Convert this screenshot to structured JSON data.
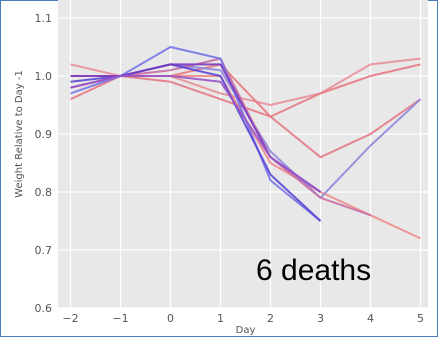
{
  "chart_data": {
    "type": "line",
    "title": "",
    "xlabel": "Day",
    "ylabel": "Weight Relative to Day -1",
    "xlim": [
      -2.25,
      5.15
    ],
    "ylim": [
      0.6,
      1.2
    ],
    "x_ticks": [
      -2,
      -1,
      0,
      1,
      2,
      3,
      4,
      5
    ],
    "y_ticks": [
      0.6,
      0.7,
      0.8,
      0.9,
      1.0,
      1.1
    ],
    "y_tick_labels": [
      "0.6",
      "0.7",
      "0.8",
      "0.9",
      "1.0",
      "1.1"
    ],
    "grid": true,
    "background": "#e8e8e8",
    "grid_color": "#ffffff",
    "annotation": "6 deaths",
    "series": [
      {
        "color": "#e8909a",
        "x": [
          -2,
          -1,
          0,
          1,
          2,
          3,
          4,
          5
        ],
        "y": [
          1.02,
          1.0,
          1.0,
          0.97,
          0.95,
          0.97,
          1.02,
          1.03
        ]
      },
      {
        "color": "#e87a82",
        "x": [
          -2,
          -1,
          0,
          1,
          2,
          3,
          4,
          5
        ],
        "y": [
          0.96,
          1.0,
          1.0,
          1.02,
          0.93,
          0.97,
          1.0,
          1.02
        ]
      },
      {
        "color": "#e37a86",
        "x": [
          -2,
          -1,
          0,
          1,
          2,
          3,
          4,
          5
        ],
        "y": [
          1.0,
          1.0,
          0.99,
          0.96,
          0.93,
          0.86,
          0.9,
          0.96
        ]
      },
      {
        "color": "#ef8a8c",
        "x": [
          -2,
          -1,
          0,
          1,
          2,
          3,
          4,
          5
        ],
        "y": [
          1.0,
          1.0,
          1.0,
          1.0,
          0.85,
          0.8,
          0.76,
          0.72
        ]
      },
      {
        "color": "#8e88d9",
        "x": [
          -2,
          -1,
          0,
          1,
          2,
          3,
          4,
          5
        ],
        "y": [
          0.98,
          1.0,
          1.02,
          1.01,
          0.87,
          0.79,
          0.88,
          0.96
        ]
      },
      {
        "color": "#c96da5",
        "x": [
          -2,
          -1,
          0,
          1,
          2,
          3,
          4
        ],
        "y": [
          0.98,
          1.0,
          1.01,
          1.03,
          0.86,
          0.79,
          0.76
        ]
      },
      {
        "color": "#7777e6",
        "x": [
          -2,
          -1,
          0,
          1,
          2,
          3
        ],
        "y": [
          0.97,
          1.0,
          1.05,
          1.03,
          0.82,
          0.75
        ]
      },
      {
        "color": "#5a46d6",
        "x": [
          -2,
          -1,
          0,
          1,
          2,
          3
        ],
        "y": [
          0.99,
          1.0,
          1.02,
          1.0,
          0.83,
          0.75
        ]
      },
      {
        "color": "#7a3ac0",
        "x": [
          -2,
          -1,
          0,
          1,
          2,
          3
        ],
        "y": [
          1.0,
          1.0,
          1.02,
          1.02,
          0.86,
          0.8
        ]
      },
      {
        "color": "#9a55c8",
        "x": [
          -2,
          -1,
          0,
          1,
          2,
          3
        ],
        "y": [
          0.98,
          1.0,
          1.0,
          0.99,
          0.86,
          0.8
        ]
      }
    ]
  }
}
